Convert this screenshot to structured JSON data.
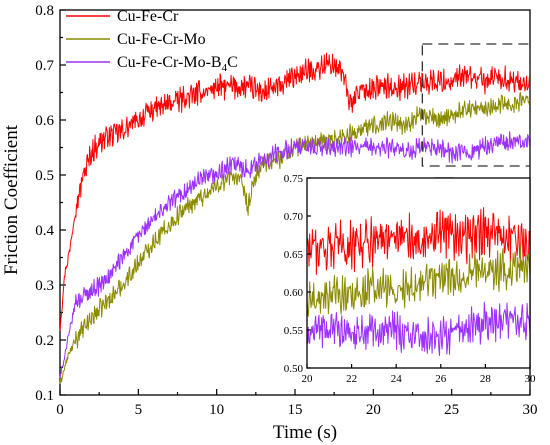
{
  "chart_data": {
    "type": "line",
    "xlabel": "Time (s)",
    "ylabel": "Friction Coefficient",
    "xlim": [
      0,
      30
    ],
    "ylim": [
      0.1,
      0.8
    ],
    "x_ticks": [
      "0",
      "5",
      "10",
      "15",
      "20",
      "25",
      "30"
    ],
    "y_ticks": [
      "0.1",
      "0.2",
      "0.3",
      "0.4",
      "0.5",
      "0.6",
      "0.7",
      "0.8"
    ],
    "grid": false,
    "legend_position": "top-left",
    "series": [
      {
        "name": "Cu-Fe-Cr",
        "color": "#ff0000",
        "x": [
          0,
          0.3,
          0.6,
          1,
          1.5,
          2,
          2.5,
          3,
          4,
          5,
          6,
          7,
          8,
          9,
          10,
          11,
          12,
          13,
          14,
          15,
          16,
          17,
          17.5,
          18,
          18.5,
          19,
          20,
          21,
          22,
          23,
          24,
          25,
          26,
          27,
          28,
          29,
          30
        ],
        "y": [
          0.22,
          0.32,
          0.36,
          0.44,
          0.5,
          0.54,
          0.56,
          0.57,
          0.58,
          0.6,
          0.62,
          0.63,
          0.64,
          0.65,
          0.66,
          0.66,
          0.66,
          0.65,
          0.66,
          0.68,
          0.69,
          0.7,
          0.7,
          0.69,
          0.63,
          0.65,
          0.66,
          0.66,
          0.66,
          0.67,
          0.67,
          0.67,
          0.68,
          0.67,
          0.68,
          0.67,
          0.66
        ],
        "noise": 0.018
      },
      {
        "name": "Cu-Fe-Cr-Mo",
        "color": "#8b8b00",
        "x": [
          0,
          0.5,
          1,
          2,
          3,
          4,
          5,
          6,
          7,
          8,
          9,
          10,
          11,
          11.5,
          12,
          12.5,
          13,
          14,
          15,
          16,
          17,
          18,
          19,
          20,
          21,
          22,
          23,
          24,
          25,
          26,
          27,
          28,
          29,
          30
        ],
        "y": [
          0.12,
          0.17,
          0.2,
          0.24,
          0.27,
          0.3,
          0.34,
          0.38,
          0.41,
          0.44,
          0.46,
          0.48,
          0.5,
          0.49,
          0.44,
          0.5,
          0.52,
          0.53,
          0.55,
          0.56,
          0.56,
          0.57,
          0.58,
          0.59,
          0.6,
          0.59,
          0.61,
          0.6,
          0.61,
          0.62,
          0.62,
          0.63,
          0.63,
          0.64
        ],
        "noise": 0.014
      },
      {
        "name": "Cu-Fe-Cr-Mo-B4C",
        "label_main": "Cu-Fe-Cr-Mo-B",
        "label_sub": "4",
        "label_tail": "C",
        "color": "#9b30ff",
        "x": [
          0,
          0.5,
          1,
          1.5,
          2,
          3,
          4,
          5,
          6,
          7,
          8,
          9,
          10,
          11,
          12,
          13,
          14,
          15,
          16,
          17,
          18,
          19,
          20,
          21,
          22,
          23,
          24,
          25,
          26,
          27,
          28,
          29,
          30
        ],
        "y": [
          0.13,
          0.2,
          0.27,
          0.28,
          0.29,
          0.31,
          0.35,
          0.39,
          0.42,
          0.45,
          0.47,
          0.49,
          0.5,
          0.52,
          0.51,
          0.53,
          0.54,
          0.55,
          0.55,
          0.55,
          0.55,
          0.55,
          0.55,
          0.55,
          0.54,
          0.55,
          0.55,
          0.54,
          0.54,
          0.55,
          0.56,
          0.56,
          0.56
        ],
        "noise": 0.014
      }
    ],
    "inset": {
      "xlim": [
        20,
        30
      ],
      "ylim": [
        0.5,
        0.75
      ],
      "x_ticks": [
        "20",
        "22",
        "24",
        "26",
        "28",
        "30"
      ],
      "y_ticks": [
        "0.50",
        "0.55",
        "0.60",
        "0.65",
        "0.70",
        "0.75"
      ],
      "zoom_region_x": [
        23,
        30
      ],
      "zoom_region_y": [
        0.5,
        0.75
      ]
    }
  }
}
